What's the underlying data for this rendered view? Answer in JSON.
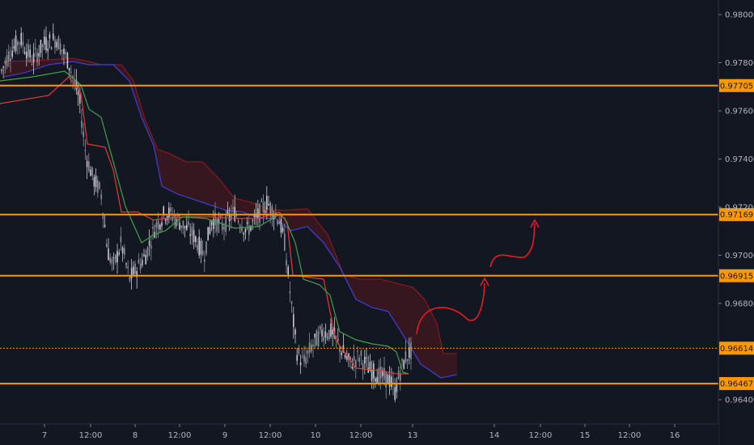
{
  "chart_data": {
    "type": "candlestick",
    "title": "",
    "xlabel": "",
    "ylabel": "",
    "grid": false,
    "x_ticks": [
      "7",
      "12:00",
      "8",
      "12:00",
      "9",
      "12:00",
      "10",
      "12:00",
      "13",
      "14",
      "12:00",
      "15",
      "12:00",
      "16"
    ],
    "y_ticks": [
      "0.98000",
      "0.97800",
      "0.97600",
      "0.97400",
      "0.97200",
      "0.97000",
      "0.96800",
      "0.96400"
    ],
    "ylim": [
      0.9635,
      0.9807
    ],
    "price_lines": [
      {
        "label": "0.97705",
        "value": 0.97705,
        "style": "solid"
      },
      {
        "label": "0.97169",
        "value": 0.97169,
        "style": "solid"
      },
      {
        "label": "0.96915",
        "value": 0.96915,
        "style": "solid"
      },
      {
        "label": "0.96614",
        "value": 0.96614,
        "style": "dotted"
      },
      {
        "label": "0.96467",
        "value": 0.96467,
        "style": "solid"
      }
    ],
    "indicator": "Ichimoku cloud",
    "annotation": "projected path upward toward 0.96915 and 0.97169",
    "colors": {
      "background": "#131722",
      "level": "#ff9800",
      "candle": "#b2b5be",
      "kijun": "#e53935",
      "tenkan": "#43a047",
      "cloud": "#b71c1c",
      "kumo_edge": "#3f3fd0",
      "arrow": "#e51c23"
    }
  }
}
